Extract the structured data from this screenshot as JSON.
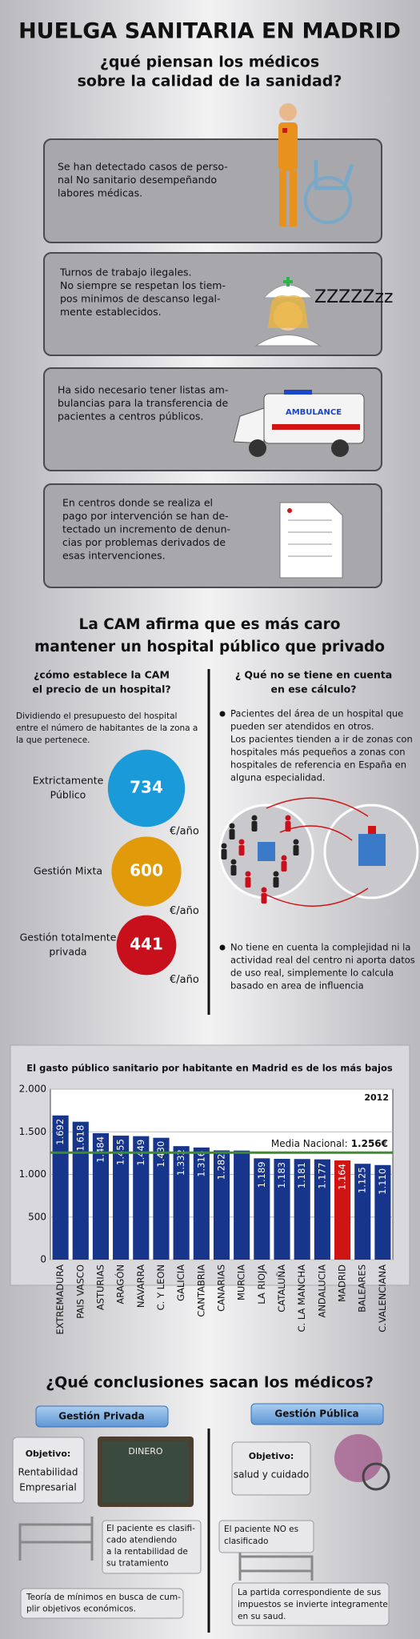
{
  "header": {
    "title": "HUELGA SANITARIA EN MADRID",
    "subtitle": [
      "¿qué piensan los médicos",
      "sobre la calidad de la sanidad?"
    ]
  },
  "issues": [
    {
      "lines": [
        "Se han detectado casos de perso-",
        "nal No sanitario desempeñando",
        "labores médicas."
      ]
    },
    {
      "lines": [
        "Turnos de trabajo ilegales.",
        "No siempre se respetan los tiem-",
        "pos minimos de descanso legal-",
        "mente establecidos."
      ],
      "icon_text": "ZZZZZzz"
    },
    {
      "lines": [
        "Ha sido necesario tener listas am-",
        "bulancias para la transferencia de",
        "pacientes a centros públicos."
      ],
      "icon_text": "AMBULANCE"
    },
    {
      "lines": [
        "En centros donde se realiza el",
        "pago por intervención se han de-",
        "tectado un incremento de denun-",
        "cias por problemas derivados de",
        "esas intervenciones."
      ]
    }
  ],
  "cost": {
    "title": [
      "La CAM afirma que es más caro",
      "mantener un hospital público que privado"
    ],
    "left_heading": [
      "¿cómo establece la CAM",
      "el precio de un hospital?"
    ],
    "left_text": [
      "Dividiendo el presupuesto del hospital",
      "entre el número de habitantes de la zona a",
      "la que pertenece."
    ],
    "unit": "€/año",
    "items": [
      {
        "label": [
          "Extrictamente",
          "Público"
        ],
        "value": 734,
        "color": "#1a9ad8"
      },
      {
        "label": [
          "Gestión Mixta"
        ],
        "value": 600,
        "color": "#e09a0a"
      },
      {
        "label": [
          "Gestión totalmente",
          "privada"
        ],
        "value": 441,
        "color": "#c8101c"
      }
    ],
    "right_heading": [
      "¿ Qué no se tiene en cuenta",
      "en ese cálculo?"
    ],
    "bullets": [
      [
        "Pacientes del área de un hospital que",
        "pueden ser atendidos en otros.",
        "Los pacientes tienden a ir de zonas con",
        "hospitales más pequeños a zonas con",
        "hospitales de referencia en España en",
        "alguna especialidad."
      ],
      [
        "No tiene en cuenta la complejidad ni la",
        "actividad real del centro ni aporta datos",
        "de uso real, simplemente lo calcula",
        "basado en area de influencia"
      ]
    ]
  },
  "chart_data": {
    "type": "bar",
    "title": "El gasto público sanitario por habitante en Madrid es de los más bajos",
    "year": "2012",
    "categories": [
      "EXTREMADURA",
      "PAIS VASCO",
      "ASTURIAS",
      "ARAGÓN",
      "NAVARRA",
      "C. Y LEON",
      "GALICIA",
      "CANTABRIA",
      "CANARIAS",
      "MURCIA",
      "LA RIOJA",
      "CATALUÑA",
      "C. LA MANCHA",
      "ANDALUCIA",
      "MADRID",
      "BALEARES",
      "C.VALENCIANA"
    ],
    "values": [
      1692,
      1618,
      1484,
      1455,
      1449,
      1430,
      1332,
      1316,
      1282,
      1280,
      1189,
      1183,
      1181,
      1177,
      1164,
      1125,
      1110
    ],
    "value_labels": [
      "1.692",
      "1.618",
      "1.484",
      "1.455",
      "1.449",
      "1.430",
      "1.332",
      "1.316",
      "1.282",
      null,
      "1.189",
      "1.183",
      "1.181",
      "1.177",
      "1.164",
      "1.125",
      "1.110"
    ],
    "colors": [
      "#17358a",
      "#17358a",
      "#17358a",
      "#17358a",
      "#17358a",
      "#17358a",
      "#17358a",
      "#17358a",
      "#17358a",
      "#17358a",
      "#17358a",
      "#17358a",
      "#17358a",
      "#17358a",
      "#d01414",
      "#17358a",
      "#17358a"
    ],
    "ylim": [
      0,
      2000
    ],
    "yticks": [
      0,
      500,
      {
        "value": 1000,
        "label": "1.000"
      },
      {
        "value": 1500,
        "label": "1.500"
      },
      {
        "value": 2000,
        "label": "2.000"
      }
    ],
    "grid": true,
    "reference": {
      "label": "Media Nacional:",
      "value": 1256,
      "value_label": "1.256€",
      "color": "#3a8c2e"
    }
  },
  "conclusions": {
    "title": "¿Qué conclusiones sacan los médicos?",
    "private": {
      "tab": "Gestión Privada",
      "objective_label": "Objetivo:",
      "objective": [
        "Rentabilidad",
        "Empresarial"
      ],
      "board": "DINERO",
      "note": [
        "El paciente es clasifi-",
        "cado atendiendo",
        "a la rentabilidad de",
        "su tratamiento"
      ],
      "bottom": [
        "Teoría de mínimos en busca de cum-",
        "plir objetivos económicos."
      ]
    },
    "public": {
      "tab": "Gestión Pública",
      "objective_label": "Objetivo:",
      "objective": [
        "salud y cuidado"
      ],
      "note": [
        "El paciente NO es",
        "clasificado"
      ],
      "bottom": [
        "La partida correspondiente de sus",
        "impuestos se invierte integramente",
        "en su saud."
      ]
    }
  }
}
